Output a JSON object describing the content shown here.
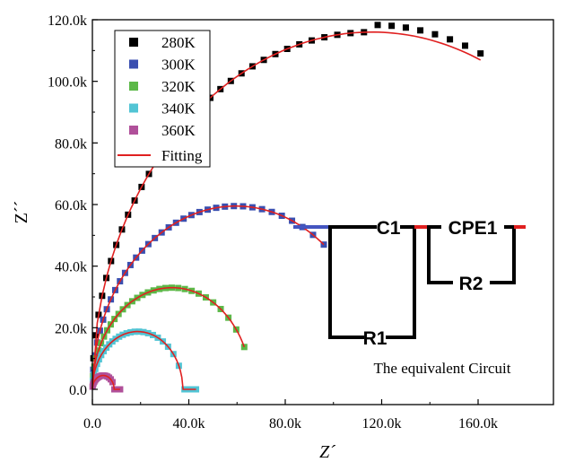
{
  "chart_data": {
    "type": "scatter",
    "title": "",
    "xlabel": "Z´",
    "ylabel": "Z´´",
    "xlim": [
      0,
      180000
    ],
    "ylim": [
      -5000,
      120000
    ],
    "x_ticks": [
      {
        "value": 0,
        "label": "0.0"
      },
      {
        "value": 40000,
        "label": "40.0k"
      },
      {
        "value": 80000,
        "label": "80.0k"
      },
      {
        "value": 120000,
        "label": "120.0k"
      },
      {
        "value": 160000,
        "label": "160.0k"
      }
    ],
    "y_ticks": [
      {
        "value": 0,
        "label": "0.0"
      },
      {
        "value": 20000,
        "label": "20.0k"
      },
      {
        "value": 40000,
        "label": "40.0k"
      },
      {
        "value": 60000,
        "label": "60.0k"
      },
      {
        "value": 80000,
        "label": "80.0k"
      },
      {
        "value": 100000,
        "label": "100.0k"
      },
      {
        "value": 120000,
        "label": "120.0k"
      }
    ],
    "grid": false,
    "legend_position": "top-left",
    "fit_label": "Fitting",
    "fit_color": "#e02020",
    "series": [
      {
        "name": "280K",
        "color": "#000000",
        "R": 232000,
        "x_end": 161000,
        "n": 40
      },
      {
        "name": "300K",
        "color": "#3a4fb0",
        "R": 119000,
        "x_end": 96000,
        "n": 34
      },
      {
        "name": "320K",
        "color": "#5cb848",
        "R": 66000,
        "x_end": 63000,
        "n": 30
      },
      {
        "name": "340K",
        "color": "#52c4d4",
        "R": 37500,
        "x_end": 43000,
        "n": 28
      },
      {
        "name": "360K",
        "color": "#b0509a",
        "R": 9000,
        "x_end": 11500,
        "n": 22
      }
    ],
    "inset": {
      "circuit": {
        "c1": "C1",
        "cpe1": "CPE1",
        "r1": "R1",
        "r2": "R2"
      },
      "caption": "The equivalent Circuit"
    }
  }
}
